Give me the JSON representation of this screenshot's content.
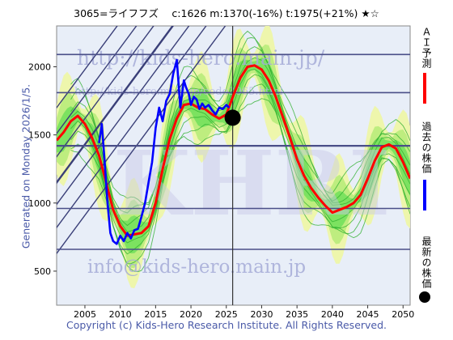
{
  "header": {
    "title": "3065=ライフフズ　 c:1626  m:1370(-16%)  t:1975(+21%)  ★☆"
  },
  "footer": {
    "copyright": "Copyright (c) Kids-Hero Research Institute. All Rights Reserved."
  },
  "side": {
    "generated": "Generated on Monday 2026/1/5."
  },
  "legend": {
    "ai": "ＡＩ予測",
    "past": "過去の株価",
    "latest": "最新の株価"
  },
  "colors": {
    "ai": "#ff0000",
    "past": "#0000ff",
    "latest": "#000000",
    "band_light": "#eef6a8",
    "band_green": "#66dd55",
    "bg": "#e8eef8"
  },
  "watermarks": {
    "url": "http://kids-hero.main.jp/",
    "code_url": "http://kids-hero.main.jp/code3065.html",
    "email": "info@kids-hero.main.jp",
    "logo": "KHRI"
  },
  "chart_data": {
    "type": "line",
    "xlim": [
      2001,
      2051
    ],
    "ylim": [
      250,
      2300
    ],
    "x_ticks": [
      2005,
      2010,
      2015,
      2020,
      2025,
      2030,
      2035,
      2040,
      2045,
      2050
    ],
    "y_ticks": [
      500,
      1000,
      1500,
      2000
    ],
    "hlines": [
      660,
      960,
      1420,
      1810,
      2090
    ],
    "current": {
      "x": 2025.9,
      "y": 1626
    },
    "series": [
      {
        "name": "過去の株価",
        "color": "#0000ff",
        "x": [
          2007.0,
          2007.4,
          2007.8,
          2008.2,
          2008.6,
          2009.0,
          2009.5,
          2010.0,
          2010.5,
          2011.0,
          2011.5,
          2012.0,
          2012.5,
          2013.0,
          2013.5,
          2014.0,
          2014.5,
          2015.0,
          2015.5,
          2016.0,
          2016.5,
          2017.0,
          2017.5,
          2018.0,
          2018.5,
          2019.0,
          2019.3,
          2019.7,
          2020.0,
          2020.4,
          2020.8,
          2021.2,
          2021.6,
          2022.0,
          2022.5,
          2023.0,
          2023.5,
          2024.0,
          2024.5,
          2025.0,
          2025.4
        ],
        "y": [
          1440,
          1580,
          1300,
          1000,
          780,
          720,
          700,
          760,
          720,
          780,
          740,
          800,
          810,
          900,
          1000,
          1150,
          1300,
          1550,
          1700,
          1600,
          1750,
          1800,
          1950,
          2050,
          1700,
          1900,
          1850,
          1800,
          1720,
          1780,
          1760,
          1690,
          1730,
          1700,
          1720,
          1680,
          1650,
          1700,
          1690,
          1720,
          1700
        ]
      },
      {
        "name": "ＡＩ予測",
        "color": "#ff0000",
        "x": [
          2001,
          2002,
          2003,
          2004,
          2005,
          2006,
          2007,
          2008,
          2009,
          2010,
          2011,
          2012,
          2013,
          2014,
          2015,
          2016,
          2017,
          2018,
          2019,
          2020,
          2021,
          2022,
          2023,
          2024,
          2025,
          2026,
          2027,
          2028,
          2029,
          2030,
          2031,
          2032,
          2033,
          2034,
          2035,
          2036,
          2037,
          2038,
          2039,
          2040,
          2041,
          2042,
          2043,
          2044,
          2045,
          2046,
          2047,
          2048,
          2049,
          2050,
          2051
        ],
        "y": [
          1460,
          1520,
          1600,
          1640,
          1580,
          1480,
          1350,
          1150,
          950,
          830,
          760,
          770,
          780,
          830,
          1000,
          1250,
          1470,
          1620,
          1720,
          1730,
          1700,
          1690,
          1650,
          1620,
          1650,
          1790,
          1920,
          2000,
          2010,
          1980,
          1900,
          1780,
          1630,
          1480,
          1320,
          1200,
          1110,
          1040,
          980,
          930,
          950,
          970,
          1000,
          1060,
          1180,
          1310,
          1410,
          1430,
          1400,
          1300,
          1180
        ]
      }
    ]
  }
}
